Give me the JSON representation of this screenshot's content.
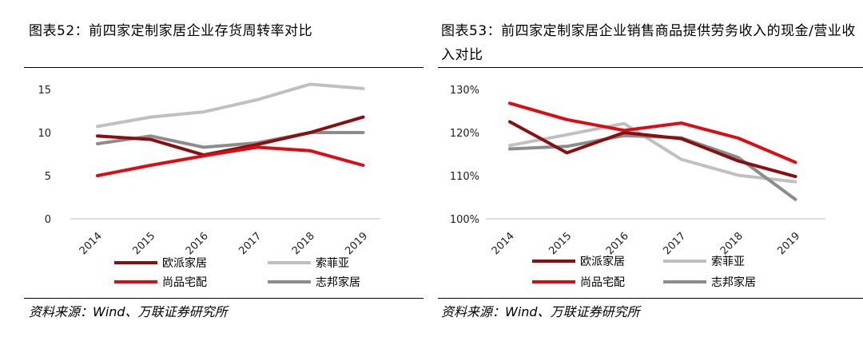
{
  "left": {
    "title": "图表52：前四家定制家居企业存货周转率对比",
    "source": "资料来源：Wind、万联证券研究所"
  },
  "right": {
    "title": "图表53：前四家定制家居企业销售商品提供劳务收入的现金/营业收入对比",
    "source": "资料来源：Wind、万联证券研究所"
  },
  "colors": {
    "oupai": "#8b0e0e",
    "suofeiya": "#c0c0c0",
    "shangpin": "#dd0b12",
    "zhibang": "#8c8c8c"
  },
  "chart_data": [
    {
      "type": "line",
      "title": "图表52：前四家定制家居企业存货周转率对比",
      "categories": [
        "2014",
        "2015",
        "2016",
        "2017",
        "2018",
        "2019"
      ],
      "ylim": [
        0,
        15
      ],
      "yticks": [
        "0",
        "5",
        "10",
        "15"
      ],
      "ytick_values": [
        0,
        5,
        10,
        15
      ],
      "legend_position": "bottom",
      "grid": false,
      "series": [
        {
          "name": "欧派家居",
          "color": "#8b0e0e",
          "values": [
            9.6,
            9.2,
            7.4,
            8.6,
            10.0,
            11.8
          ]
        },
        {
          "name": "索菲亚",
          "color": "#c0c0c0",
          "values": [
            10.7,
            11.8,
            12.4,
            13.8,
            15.6,
            15.1
          ]
        },
        {
          "name": "尚品宅配",
          "color": "#dd0b12",
          "values": [
            5.0,
            6.2,
            7.3,
            8.3,
            7.9,
            6.2
          ]
        },
        {
          "name": "志邦家居",
          "color": "#8c8c8c",
          "values": [
            8.7,
            9.6,
            8.3,
            8.8,
            10.0,
            10.0
          ]
        }
      ]
    },
    {
      "type": "line",
      "title": "图表53：前四家定制家居企业销售商品提供劳务收入的现金/营业收入对比",
      "categories": [
        "2014",
        "2015",
        "2016",
        "2017",
        "2018",
        "2019"
      ],
      "ylim": [
        100,
        130
      ],
      "yticks": [
        "100%",
        "110%",
        "120%",
        "130%"
      ],
      "ytick_values": [
        100,
        110,
        120,
        130
      ],
      "legend_position": "bottom",
      "grid": false,
      "series": [
        {
          "name": "欧派家居",
          "color": "#8b0e0e",
          "values": [
            122.5,
            115.3,
            120.0,
            118.6,
            113.4,
            109.8
          ]
        },
        {
          "name": "索菲亚",
          "color": "#c0c0c0",
          "values": [
            117.0,
            119.5,
            122.1,
            113.8,
            110.1,
            108.6
          ]
        },
        {
          "name": "尚品宅配",
          "color": "#dd0b12",
          "values": [
            126.8,
            123.0,
            120.5,
            122.2,
            118.7,
            113.1
          ]
        },
        {
          "name": "志邦家居",
          "color": "#8c8c8c",
          "values": [
            116.2,
            116.8,
            119.3,
            118.8,
            114.2,
            104.5
          ]
        }
      ]
    }
  ]
}
